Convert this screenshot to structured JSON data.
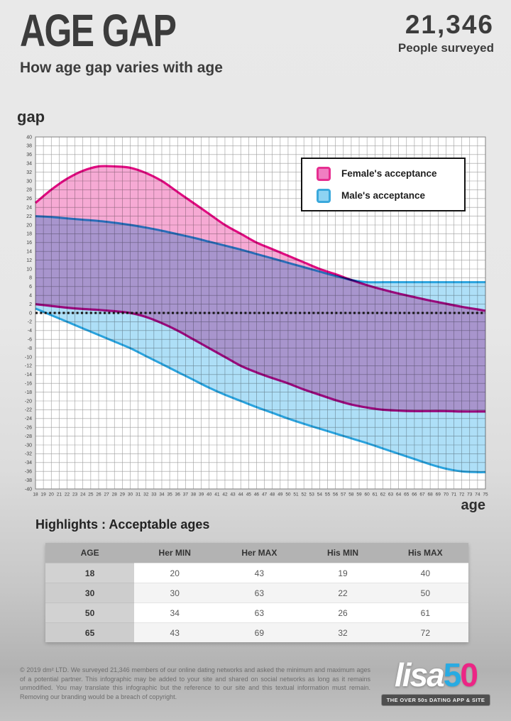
{
  "header": {
    "title": "AGE GAP",
    "subtitle": "How age gap varies with age",
    "survey_count": "21,346",
    "survey_label": "People surveyed"
  },
  "chart_data": {
    "type": "area",
    "title": "",
    "xlabel": "age",
    "ylabel": "gap",
    "xlim": [
      18,
      75
    ],
    "xstep": 1,
    "ylim": [
      -40,
      40
    ],
    "ystep": 2,
    "grid": true,
    "zero_line": "dotted black",
    "legend_position": "top-right inset",
    "legend": [
      {
        "label": "Female's acceptance",
        "fill": "#f07fc2",
        "border": "#e62e90"
      },
      {
        "label": "Male's acceptance",
        "fill": "#8ed3f2",
        "border": "#3aa8dc"
      }
    ],
    "female_fill": "#f6aad4",
    "female_stroke": "#e00b80",
    "male_fill": "#aedff7",
    "male_stroke": "#2aa3de",
    "x": [
      18,
      20,
      22,
      24,
      26,
      28,
      30,
      32,
      34,
      36,
      38,
      40,
      42,
      44,
      46,
      48,
      50,
      52,
      54,
      56,
      58,
      60,
      62,
      64,
      66,
      68,
      70,
      72,
      74,
      75
    ],
    "series": [
      {
        "name": "her_max",
        "label": "Female's acceptance max gap",
        "values": [
          25,
          28,
          30.5,
          32.3,
          33.3,
          33.3,
          33,
          31.8,
          30,
          27.5,
          25,
          22.5,
          20,
          18,
          16,
          14.5,
          13,
          11.5,
          10,
          8.8,
          7.5,
          6.3,
          5.3,
          4.4,
          3.6,
          2.8,
          2.1,
          1.4,
          0.8,
          0.5
        ]
      },
      {
        "name": "her_min",
        "label": "Female's acceptance min gap",
        "values": [
          2,
          1.6,
          1.2,
          0.9,
          0.7,
          0.4,
          0,
          -0.9,
          -2.3,
          -4,
          -6,
          -8,
          -10,
          -12,
          -13.5,
          -14.8,
          -16,
          -17.4,
          -18.6,
          -19.8,
          -20.8,
          -21.5,
          -22,
          -22.2,
          -22.3,
          -22.3,
          -22.3,
          -22.4,
          -22.4,
          -22.4
        ]
      },
      {
        "name": "his_max",
        "label": "Male's acceptance max gap",
        "values": [
          22,
          21.8,
          21.5,
          21.2,
          20.9,
          20.5,
          20,
          19.4,
          18.7,
          17.9,
          17.1,
          16.2,
          15.3,
          14.4,
          13.4,
          12.4,
          11.4,
          10.4,
          9.4,
          8.4,
          7.5,
          7,
          7,
          7,
          7,
          7,
          7,
          7,
          7,
          7
        ]
      },
      {
        "name": "his_min",
        "label": "Male's acceptance min gap",
        "values": [
          1,
          -0.5,
          -2,
          -3.5,
          -5,
          -6.5,
          -8,
          -9.8,
          -11.6,
          -13.4,
          -15.2,
          -17,
          -18.6,
          -20,
          -21.4,
          -22.7,
          -24,
          -25.2,
          -26.3,
          -27.4,
          -28.5,
          -29.6,
          -30.8,
          -32,
          -33.2,
          -34.4,
          -35.4,
          -36,
          -36.2,
          -36.2
        ]
      }
    ]
  },
  "highlights": {
    "title": "Highlights : Acceptable ages",
    "headers": [
      "AGE",
      "Her MIN",
      "Her MAX",
      "His MIN",
      "His MAX"
    ],
    "rows": [
      [
        "18",
        "20",
        "43",
        "19",
        "40"
      ],
      [
        "30",
        "30",
        "63",
        "22",
        "50"
      ],
      [
        "50",
        "34",
        "63",
        "26",
        "61"
      ],
      [
        "65",
        "43",
        "69",
        "32",
        "72"
      ]
    ]
  },
  "footer": {
    "copyright": "© 2019 dm² LTD. We surveyed 21,346 members of our online dating networks and asked the minimum and maximum ages of a potential partner. This infographic may be added to your site and shared on social networks as long as it remains unmodified. You may translate this infographic but the reference to our site and this textual information must remain. Removing our branding would be a breach of copyright.",
    "logo": {
      "word_lisa": "lisa",
      "word_5": "5",
      "word_0": "0",
      "color_5": "#29abe2",
      "color_0": "#ec2585",
      "tagline": "THE OVER 50s DATING APP & SITE"
    }
  }
}
